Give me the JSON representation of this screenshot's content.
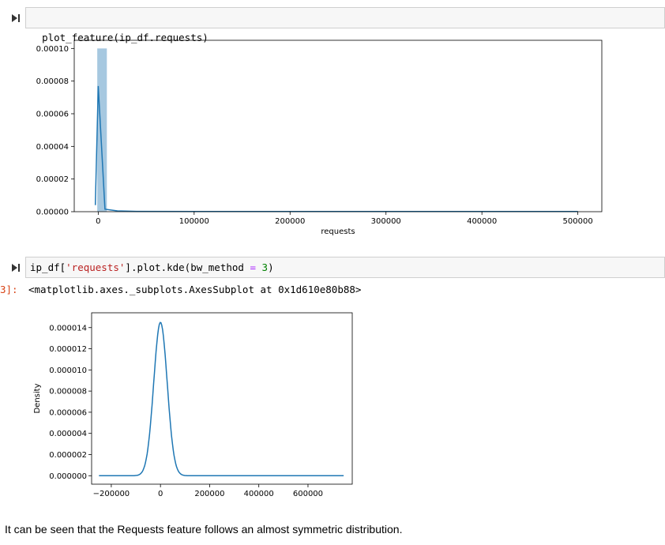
{
  "cells": {
    "cell1": {
      "code": "plot_feature(ip_df.requests)"
    },
    "cell2": {
      "code_prefix": "ip_df[",
      "code_string": "'requests'",
      "code_mid": "].plot.kde(bw_method ",
      "code_op": "=",
      "code_space": " ",
      "code_num": "3",
      "code_suffix": ")",
      "output_prompt": "3]:",
      "output_text": "<matplotlib.axes._subplots.AxesSubplot at 0x1d610e80b88>"
    }
  },
  "markdown": {
    "text": "It can be seen that the Requests feature follows an almost symmetric distribution."
  },
  "chart_data": [
    {
      "type": "bar",
      "subtype": "histogram-with-kde",
      "xlabel": "requests",
      "ylabel": "",
      "xlim": [
        -25000,
        525000
      ],
      "ylim": [
        0,
        0.000105
      ],
      "xticks": [
        "0",
        "100000",
        "200000",
        "300000",
        "400000",
        "500000"
      ],
      "xtick_values": [
        0,
        100000,
        200000,
        300000,
        400000,
        500000
      ],
      "yticks": [
        "0.00000",
        "0.00002",
        "0.00004",
        "0.00006",
        "0.00008",
        "0.00010"
      ],
      "ytick_values": [
        0,
        2e-05,
        4e-05,
        6e-05,
        8e-05,
        0.0001
      ],
      "bar_color": "#a6c8e0",
      "line_color": "#1f77b4",
      "bins": [
        {
          "x0": -1000,
          "x1": 9000,
          "value": 0.0001
        }
      ],
      "kde_points": [
        [
          -3000,
          4e-06
        ],
        [
          0,
          7.7e-05
        ],
        [
          7000,
          1.5e-06
        ],
        [
          20000,
          5e-07
        ],
        [
          40000,
          2e-07
        ],
        [
          100000,
          1e-07
        ],
        [
          500000,
          1e-07
        ]
      ]
    },
    {
      "type": "line",
      "subtype": "kde",
      "xlabel": "",
      "ylabel": "Density",
      "xlim": [
        -280000,
        780000
      ],
      "ylim": [
        -8e-07,
        1.54e-05
      ],
      "xticks": [
        "−200000",
        "0",
        "200000",
        "400000",
        "600000"
      ],
      "xtick_values": [
        -200000,
        0,
        200000,
        400000,
        600000
      ],
      "yticks": [
        "0.000000",
        "0.000002",
        "0.000004",
        "0.000006",
        "0.000008",
        "0.000010",
        "0.000012",
        "0.000014"
      ],
      "ytick_values": [
        0,
        2e-06,
        4e-06,
        6e-06,
        8e-06,
        1e-05,
        1.2e-05,
        1.4e-05
      ],
      "line_color": "#1f77b4",
      "curve": {
        "type": "gaussian",
        "mean": 0,
        "sd": 27500,
        "peak": 1.45e-05,
        "x_from": -250000,
        "x_to": 745000
      }
    }
  ]
}
